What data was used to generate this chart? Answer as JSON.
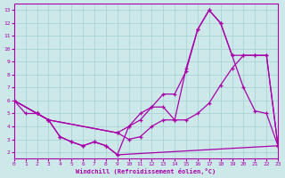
{
  "xlabel": "Windchill (Refroidissement éolien,°C)",
  "bg_color": "#cce8e8",
  "grid_color": "#aad4d4",
  "line_color": "#aa00aa",
  "xlim": [
    0,
    23
  ],
  "ylim": [
    1.5,
    13.5
  ],
  "xticks": [
    0,
    1,
    2,
    3,
    4,
    5,
    6,
    7,
    8,
    9,
    10,
    11,
    12,
    13,
    14,
    15,
    16,
    17,
    18,
    19,
    20,
    21,
    22,
    23
  ],
  "yticks": [
    2,
    3,
    4,
    5,
    6,
    7,
    8,
    9,
    10,
    11,
    12,
    13
  ],
  "line1_x": [
    0,
    1,
    2,
    3,
    4,
    5,
    6,
    7,
    8,
    9,
    10,
    11,
    12,
    13,
    14,
    15,
    16,
    17,
    18,
    19,
    20,
    21,
    22,
    23
  ],
  "line1_y": [
    6.0,
    5.0,
    5.0,
    4.5,
    3.2,
    2.8,
    2.5,
    2.8,
    2.5,
    1.8,
    4.0,
    5.0,
    5.5,
    5.5,
    4.5,
    8.5,
    11.5,
    13.0,
    12.0,
    9.5,
    7.0,
    5.2,
    5.0,
    2.5
  ],
  "line2_x": [
    0,
    2,
    3,
    9,
    10,
    11,
    12,
    13,
    14,
    15,
    16,
    17,
    18,
    19,
    20,
    21,
    22,
    23
  ],
  "line2_y": [
    6.0,
    5.0,
    4.5,
    3.5,
    4.0,
    4.5,
    5.5,
    6.5,
    6.5,
    8.3,
    11.5,
    13.0,
    12.0,
    9.5,
    9.5,
    9.5,
    9.5,
    2.5
  ],
  "line3_x": [
    0,
    2,
    3,
    9,
    10,
    11,
    12,
    13,
    14,
    15,
    16,
    17,
    18,
    19,
    20,
    21,
    22,
    23
  ],
  "line3_y": [
    6.0,
    5.0,
    4.5,
    3.5,
    3.0,
    3.2,
    4.0,
    4.5,
    4.5,
    4.5,
    5.0,
    5.8,
    7.2,
    8.5,
    9.5,
    9.5,
    9.5,
    2.5
  ],
  "line4_x": [
    0,
    2,
    3,
    4,
    5,
    6,
    7,
    8,
    9,
    23
  ],
  "line4_y": [
    6.0,
    5.0,
    4.5,
    3.2,
    2.8,
    2.5,
    2.8,
    2.5,
    1.8,
    2.5
  ]
}
